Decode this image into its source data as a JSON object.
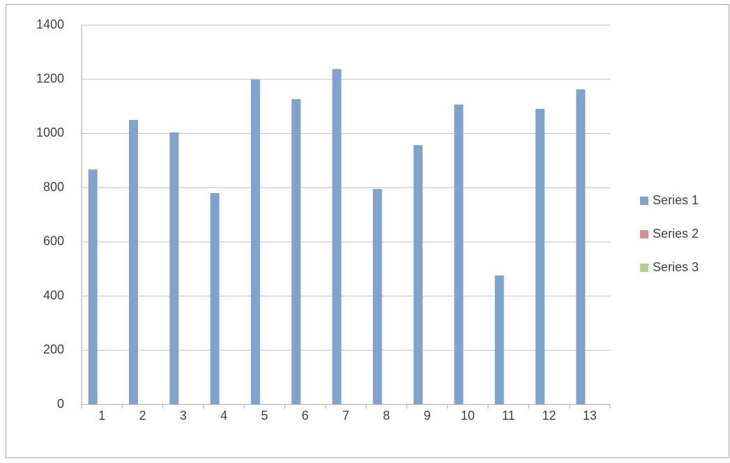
{
  "chart_data": {
    "type": "bar",
    "categories": [
      "1",
      "2",
      "3",
      "4",
      "5",
      "6",
      "7",
      "8",
      "9",
      "10",
      "11",
      "12",
      "13"
    ],
    "series": [
      {
        "name": "Series 1",
        "color": "#7fa3cc",
        "values": [
          867,
          1050,
          1004,
          780,
          1199,
          1127,
          1238,
          795,
          957,
          1107,
          476,
          1091,
          1163
        ]
      },
      {
        "name": "Series 2",
        "color": "#d98f8d",
        "values": [
          null,
          null,
          null,
          null,
          null,
          null,
          null,
          null,
          null,
          null,
          null,
          null,
          null
        ]
      },
      {
        "name": "Series 3",
        "color": "#b5d08a",
        "values": [
          null,
          null,
          null,
          null,
          null,
          null,
          null,
          null,
          null,
          null,
          null,
          null,
          null
        ]
      }
    ],
    "ylim": [
      0,
      1400
    ],
    "yticks": [
      0,
      200,
      400,
      600,
      800,
      1000,
      1200,
      1400
    ],
    "grid": true,
    "legend": "right"
  }
}
